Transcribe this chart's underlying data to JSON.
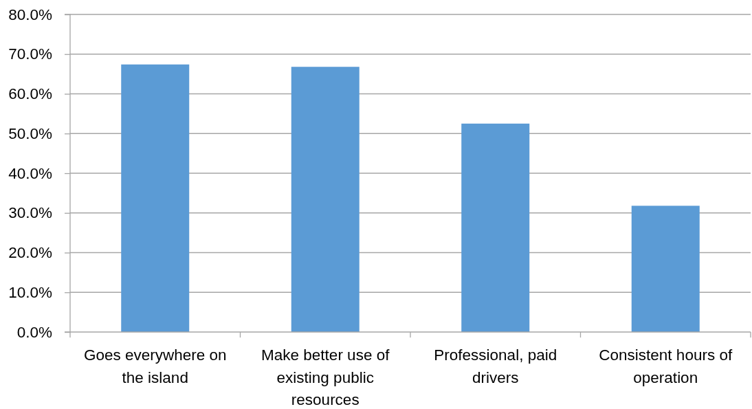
{
  "chart_data": {
    "type": "bar",
    "categories": [
      "Goes everywhere on the island",
      "Make better use of existing public resources",
      "Professional, paid drivers",
      "Consistent hours of operation"
    ],
    "values": [
      67.4,
      66.8,
      52.5,
      31.8
    ],
    "color": "#5b9bd5",
    "ylim": [
      0,
      80
    ],
    "yticks": [
      {
        "value": 0,
        "label": "0.0%"
      },
      {
        "value": 10,
        "label": "10.0%"
      },
      {
        "value": 20,
        "label": "20.0%"
      },
      {
        "value": 30,
        "label": "30.0%"
      },
      {
        "value": 40,
        "label": "40.0%"
      },
      {
        "value": 50,
        "label": "50.0%"
      },
      {
        "value": 60,
        "label": "60.0%"
      },
      {
        "value": 70,
        "label": "70.0%"
      },
      {
        "value": 80,
        "label": "80.0%"
      }
    ],
    "grid": "y"
  }
}
